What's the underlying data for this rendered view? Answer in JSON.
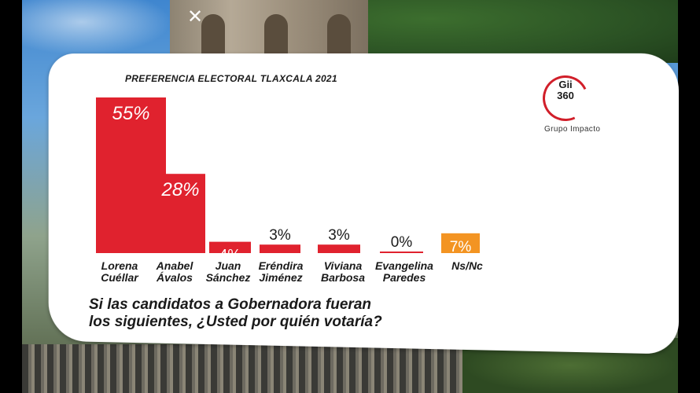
{
  "ui": {
    "close_label": "✕"
  },
  "logo": {
    "line1": "Gii",
    "line2": "360",
    "caption": "Grupo Impacto"
  },
  "question": {
    "line1": "Si las candidatos a Gobernadora fueran",
    "line2": "los siguientes, ¿Usted por quién votaría?"
  },
  "chart_data": {
    "type": "bar",
    "title": "PREFERENCIA ELECTORAL TLAXCALA 2021",
    "categories": [
      [
        "Lorena",
        "Cuéllar"
      ],
      [
        "Anabel",
        "Ávalos"
      ],
      [
        "Juan",
        "Sánchez"
      ],
      [
        "Eréndira",
        "Jiménez"
      ],
      [
        "Viviana",
        "Barbosa"
      ],
      [
        "Evangelina",
        "Paredes"
      ],
      [
        "Ns/Nc"
      ]
    ],
    "values": [
      55,
      28,
      4,
      3,
      3,
      0,
      7
    ],
    "value_labels": [
      "55%",
      "28%",
      "4%",
      "3%",
      "3%",
      "0%",
      "7%"
    ],
    "colors": [
      "#e0222e",
      "#e0222e",
      "#e0222e",
      "#e0222e",
      "#e0222e",
      "#e0222e",
      "#f39422"
    ],
    "ylim": [
      0,
      55
    ],
    "grid": false,
    "legend": "none"
  }
}
